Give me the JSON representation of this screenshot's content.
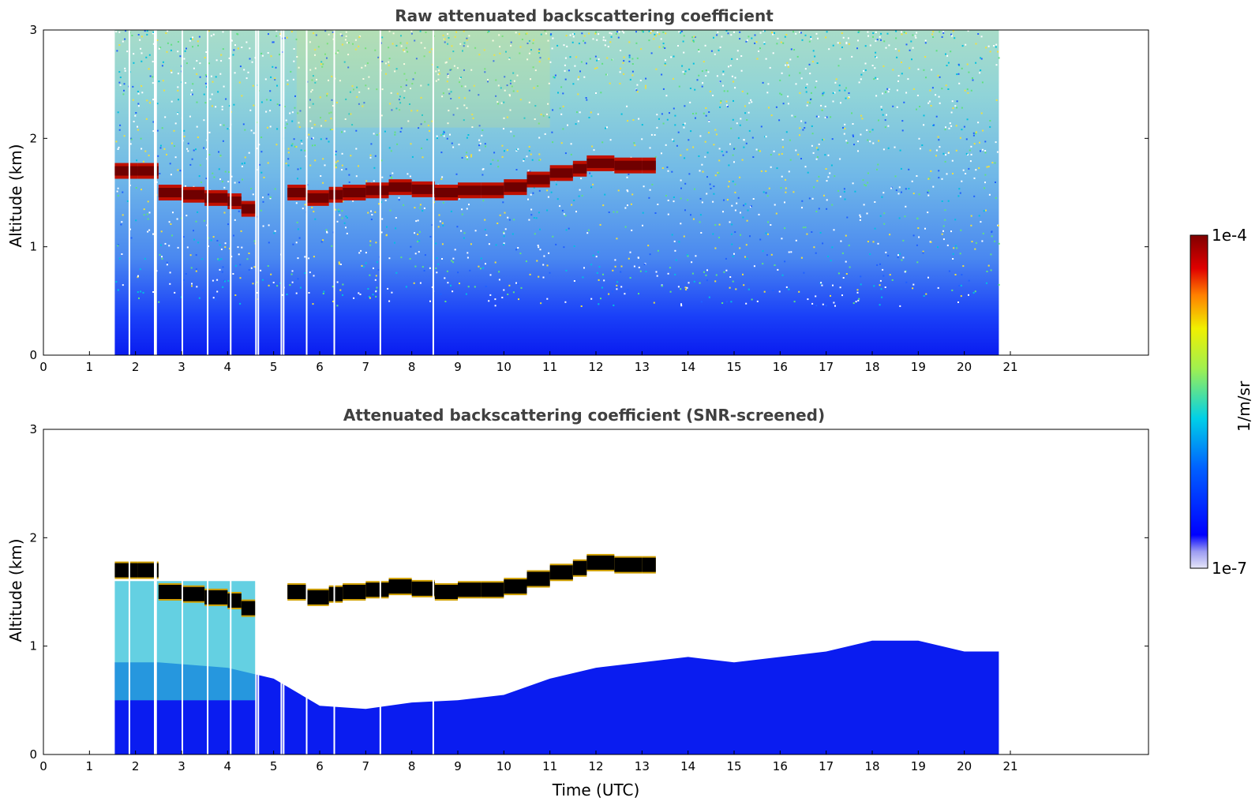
{
  "chart_data": [
    {
      "type": "heatmap",
      "title": "Raw attenuated backscattering coefficient",
      "xlabel": "",
      "ylabel": "Altitude (km)",
      "xlim": [
        0,
        24
      ],
      "ylim": [
        0,
        3
      ],
      "xticks": [
        "0",
        "1",
        "2",
        "3",
        "4",
        "5",
        "6",
        "7",
        "8",
        "9",
        "10",
        "11",
        "12",
        "13",
        "14",
        "15",
        "16",
        "17",
        "18",
        "19",
        "20",
        "21"
      ],
      "yticks": [
        "0",
        "1",
        "2",
        "3"
      ],
      "data_time_range": [
        1.55,
        20.75
      ],
      "cloud_layer": {
        "time": [
          1.55,
          2.05,
          2.5,
          3.0,
          3.5,
          4.0,
          4.3,
          4.6,
          5.3,
          5.7,
          6.2,
          6.5,
          7.0,
          7.5,
          8.0,
          8.5,
          9.0,
          9.5,
          10.0,
          10.5,
          11.0,
          11.5,
          11.8,
          12.4,
          13.0,
          13.3
        ],
        "altitude_km": [
          1.7,
          1.7,
          1.5,
          1.48,
          1.45,
          1.42,
          1.35,
          1.4,
          1.5,
          1.45,
          1.48,
          1.5,
          1.52,
          1.55,
          1.53,
          1.5,
          1.52,
          1.52,
          1.55,
          1.62,
          1.68,
          1.72,
          1.77,
          1.75,
          1.75,
          1.76
        ]
      }
    },
    {
      "type": "heatmap",
      "title": "Attenuated backscattering coefficient (SNR-screened)",
      "xlabel": "Time (UTC)",
      "ylabel": "Altitude (km)",
      "xlim": [
        0,
        24
      ],
      "ylim": [
        0,
        3
      ],
      "xticks": [
        "0",
        "1",
        "2",
        "3",
        "4",
        "5",
        "6",
        "7",
        "8",
        "9",
        "10",
        "11",
        "12",
        "13",
        "14",
        "15",
        "16",
        "17",
        "18",
        "19",
        "20",
        "21"
      ],
      "yticks": [
        "0",
        "1",
        "2",
        "3"
      ],
      "data_time_range": [
        1.55,
        20.75
      ],
      "boundary_layer_top": {
        "time": [
          1.55,
          2.5,
          4.0,
          5.0,
          6.0,
          7.0,
          8.0,
          9.0,
          10.0,
          11.0,
          12.0,
          13.0,
          14.0,
          15.0,
          16.0,
          17.0,
          18.0,
          19.0,
          20.0,
          20.75
        ],
        "altitude_km": [
          0.85,
          0.85,
          0.8,
          0.7,
          0.45,
          0.42,
          0.48,
          0.5,
          0.55,
          0.7,
          0.8,
          0.85,
          0.9,
          0.85,
          0.9,
          0.95,
          1.05,
          1.05,
          0.95,
          0.95
        ]
      }
    }
  ],
  "colorbar": {
    "max_label": "1e-4",
    "min_label": "1e-7",
    "unit_label": "1/m/sr",
    "colors": [
      "#e6e6f8",
      "#c4c4f0",
      "#9c9cf2",
      "#6060f5",
      "#0000ff",
      "#0040ff",
      "#0090ff",
      "#00d0e8",
      "#30e8a0",
      "#a0f050",
      "#f0f000",
      "#ffa000",
      "#ff3000",
      "#d00000",
      "#800000"
    ]
  }
}
